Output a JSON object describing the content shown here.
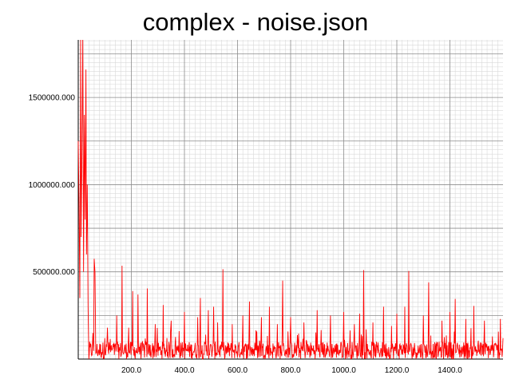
{
  "chart_data": {
    "type": "line",
    "title": "complex - noise.json",
    "xlabel": "",
    "ylabel": "",
    "xlim": [
      0,
      1600
    ],
    "ylim": [
      0,
      1830000
    ],
    "x_ticks": [
      200.0,
      400.0,
      600.0,
      800.0,
      1000.0,
      1200.0,
      1400.0
    ],
    "x_tick_labels": [
      "200.0",
      "400.0",
      "600.0",
      "800.0",
      "1000.0",
      "1200.0",
      "1400.0"
    ],
    "y_ticks": [
      500000,
      1000000,
      1500000
    ],
    "y_tick_labels": [
      "500000.000",
      "1000000.000",
      "1500000.000"
    ],
    "grid": true,
    "series": [
      {
        "color": "#ff0000",
        "baseline_noise_max": 100000,
        "points": [
          [
            0,
            1250000
          ],
          [
            3,
            900000
          ],
          [
            6,
            350000
          ],
          [
            9,
            1830000
          ],
          [
            11,
            700000
          ],
          [
            14,
            1200000
          ],
          [
            17,
            1830000
          ],
          [
            20,
            500000
          ],
          [
            23,
            1400000
          ],
          [
            26,
            800000
          ],
          [
            29,
            1660000
          ],
          [
            31,
            600000
          ],
          [
            34,
            1000000
          ],
          [
            37,
            300000
          ],
          [
            40,
            0
          ],
          [
            55,
            150000
          ],
          [
            60,
            575000
          ],
          [
            63,
            500000
          ],
          [
            66,
            30000
          ],
          [
            100,
            120000
          ],
          [
            110,
            180000
          ],
          [
            130,
            60000
          ],
          [
            145,
            250000
          ],
          [
            150,
            40000
          ],
          [
            165,
            535000
          ],
          [
            170,
            30000
          ],
          [
            190,
            180000
          ],
          [
            205,
            390000
          ],
          [
            210,
            20000
          ],
          [
            225,
            370000
          ],
          [
            230,
            70000
          ],
          [
            260,
            405000
          ],
          [
            265,
            40000
          ],
          [
            290,
            200000
          ],
          [
            320,
            310000
          ],
          [
            325,
            30000
          ],
          [
            350,
            220000
          ],
          [
            380,
            160000
          ],
          [
            400,
            270000
          ],
          [
            450,
            240000
          ],
          [
            460,
            350000
          ],
          [
            465,
            30000
          ],
          [
            490,
            280000
          ],
          [
            510,
            300000
          ],
          [
            525,
            210000
          ],
          [
            545,
            515000
          ],
          [
            550,
            40000
          ],
          [
            580,
            200000
          ],
          [
            620,
            250000
          ],
          [
            645,
            330000
          ],
          [
            650,
            60000
          ],
          [
            690,
            240000
          ],
          [
            720,
            300000
          ],
          [
            750,
            200000
          ],
          [
            770,
            450000
          ],
          [
            775,
            50000
          ],
          [
            800,
            240000
          ],
          [
            850,
            210000
          ],
          [
            900,
            280000
          ],
          [
            950,
            250000
          ],
          [
            1000,
            270000
          ],
          [
            1040,
            200000
          ],
          [
            1060,
            260000
          ],
          [
            1075,
            510000
          ],
          [
            1080,
            40000
          ],
          [
            1110,
            210000
          ],
          [
            1150,
            300000
          ],
          [
            1180,
            190000
          ],
          [
            1200,
            260000
          ],
          [
            1230,
            300000
          ],
          [
            1245,
            505000
          ],
          [
            1250,
            60000
          ],
          [
            1300,
            250000
          ],
          [
            1320,
            440000
          ],
          [
            1325,
            40000
          ],
          [
            1370,
            220000
          ],
          [
            1400,
            270000
          ],
          [
            1420,
            345000
          ],
          [
            1425,
            40000
          ],
          [
            1460,
            230000
          ],
          [
            1490,
            305000
          ],
          [
            1495,
            40000
          ],
          [
            1530,
            220000
          ],
          [
            1560,
            130000
          ],
          [
            1590,
            230000
          ],
          [
            1595,
            60000
          ],
          [
            1600,
            120000
          ]
        ]
      }
    ]
  }
}
